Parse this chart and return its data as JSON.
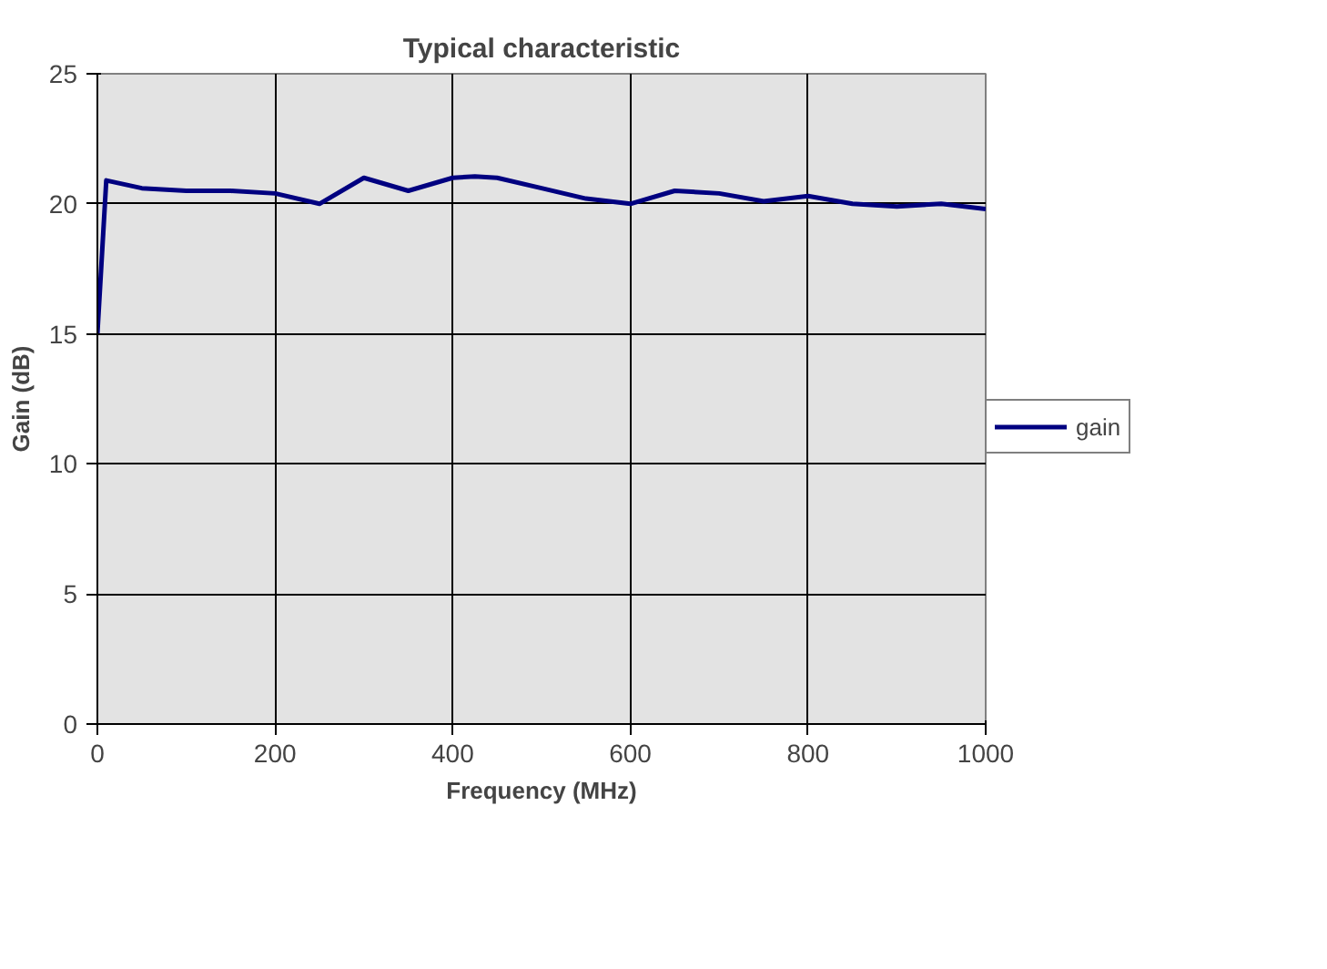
{
  "chart_data": {
    "type": "line",
    "title": "Typical characteristic",
    "xlabel": "Frequency (MHz)",
    "ylabel": "Gain (dB)",
    "x": [
      0,
      10,
      50,
      100,
      150,
      200,
      250,
      300,
      350,
      400,
      425,
      450,
      500,
      550,
      600,
      650,
      700,
      750,
      800,
      850,
      900,
      950,
      1000
    ],
    "series": [
      {
        "name": "gain",
        "color": "#000080",
        "values": [
          15,
          20.9,
          20.6,
          20.5,
          20.5,
          20.4,
          20,
          21,
          20.5,
          21,
          21.05,
          21,
          20.6,
          20.2,
          20,
          20.5,
          20.4,
          20.1,
          20.3,
          20,
          19.9,
          20,
          19.8
        ]
      }
    ],
    "xlim": [
      0,
      1000
    ],
    "ylim": [
      0,
      25
    ],
    "xticks": [
      0,
      200,
      400,
      600,
      800,
      1000
    ],
    "yticks": [
      0,
      5,
      10,
      15,
      20,
      25
    ],
    "grid": true,
    "legend": "right",
    "marker": "none",
    "line_style": "solid"
  }
}
